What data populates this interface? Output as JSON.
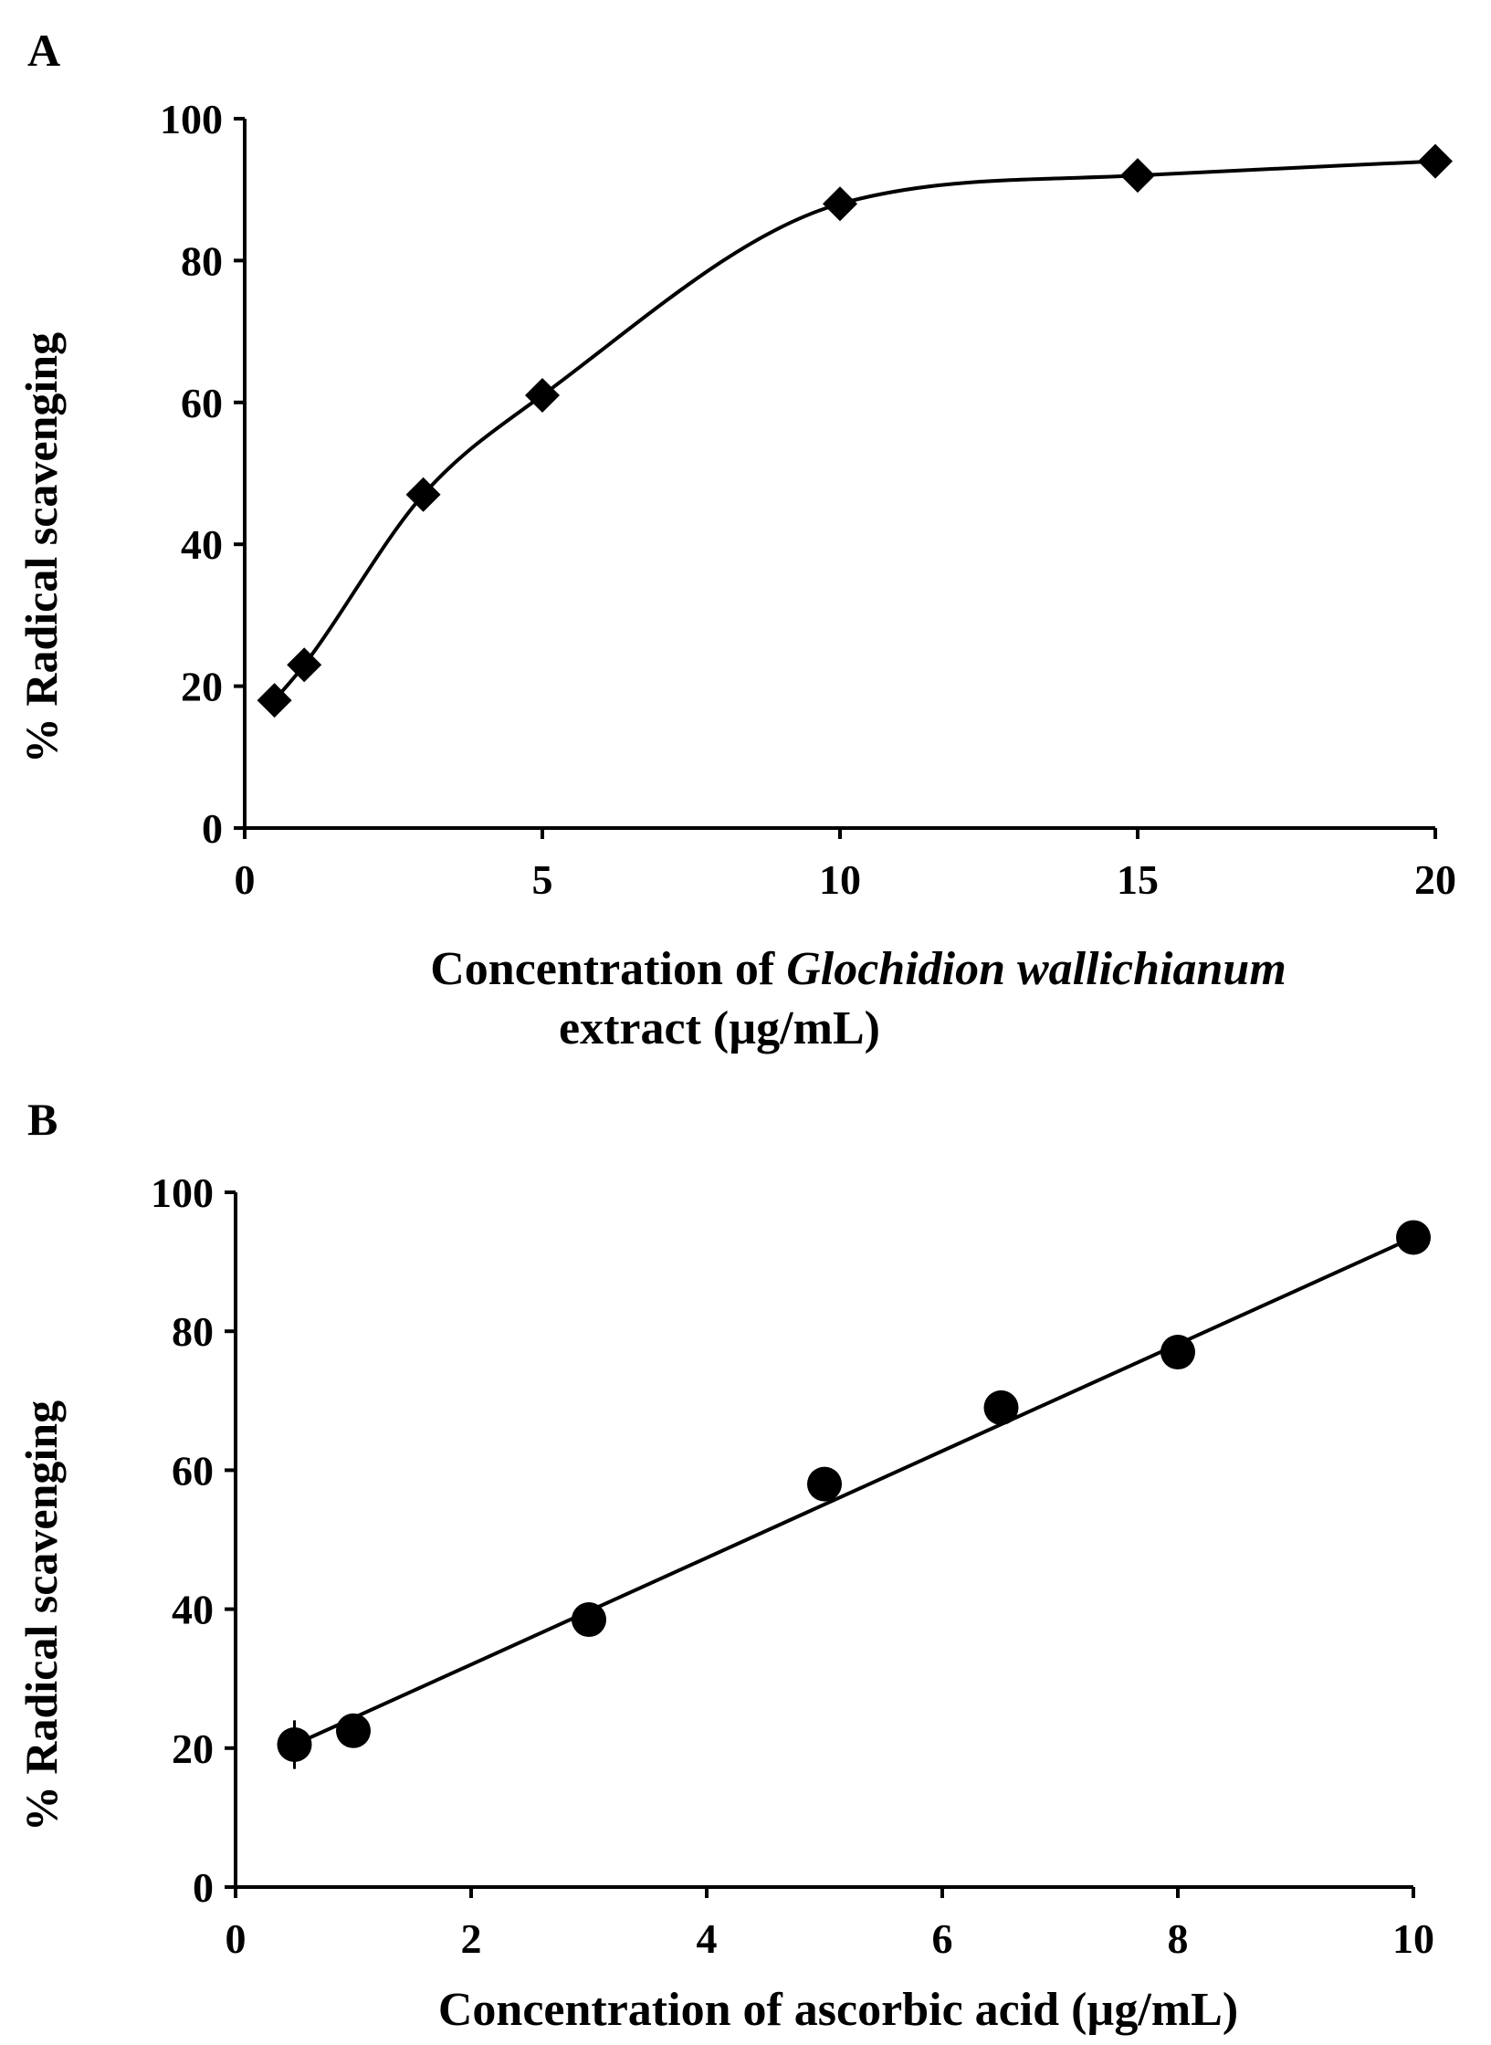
{
  "chart_data": [
    {
      "panel": "A",
      "type": "scatter",
      "marker": "diamond",
      "fit": "smooth",
      "ylabel": "% Radical scavenging",
      "xlabel_parts": [
        "Concentration of ",
        "Glochidion wallichianum",
        " extract  (µg/mL)"
      ],
      "xlim": [
        0,
        20
      ],
      "ylim": [
        0,
        100
      ],
      "xticks": [
        "0",
        "5",
        "10",
        "15",
        "20"
      ],
      "yticks": [
        "0",
        "20",
        "40",
        "60",
        "80",
        "100"
      ],
      "series": [
        {
          "name": "Glochidion wallichianum extract",
          "x": [
            0.5,
            1,
            3,
            5,
            10,
            15,
            20
          ],
          "y": [
            18,
            23,
            47,
            61,
            88,
            92,
            94
          ]
        }
      ]
    },
    {
      "panel": "B",
      "type": "scatter",
      "marker": "circle",
      "fit": "linear",
      "ylabel": "% Radical scavenging",
      "xlabel": "Concentration of ascorbic acid (µg/mL)",
      "xlim": [
        0,
        10
      ],
      "ylim": [
        0,
        100
      ],
      "xticks": [
        "0",
        "2",
        "4",
        "6",
        "8",
        "10"
      ],
      "yticks": [
        "0",
        "20",
        "40",
        "60",
        "80",
        "100"
      ],
      "series": [
        {
          "name": "ascorbic acid",
          "x": [
            0.5,
            1,
            3,
            5,
            6.5,
            8,
            10
          ],
          "y": [
            20.5,
            22.5,
            38.5,
            58,
            69,
            77,
            93.5
          ],
          "err": [
            3.5,
            1.5,
            0,
            0,
            0,
            0,
            0
          ]
        }
      ],
      "fit_line": {
        "x": [
          0.5,
          10
        ],
        "y": [
          20.5,
          93.5
        ]
      }
    }
  ]
}
